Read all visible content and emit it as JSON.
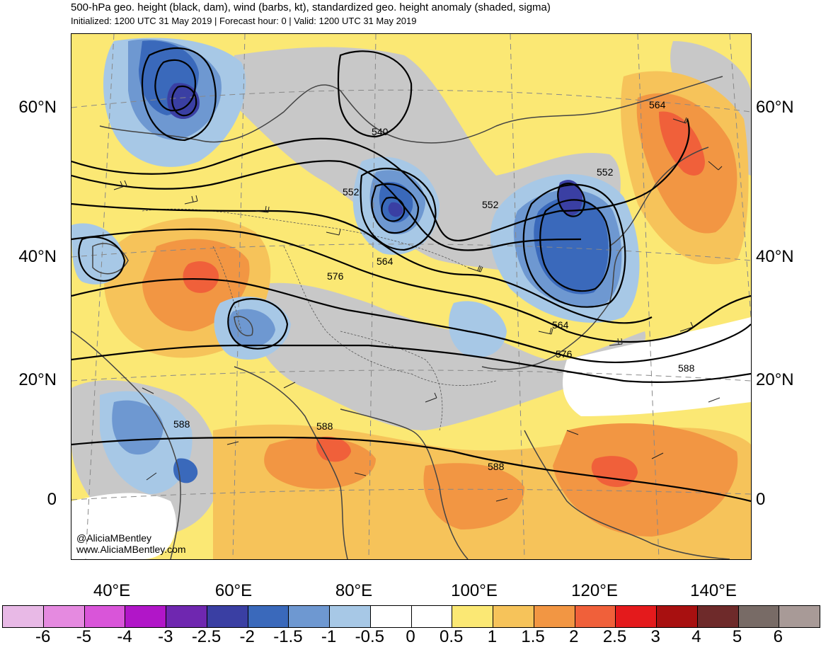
{
  "header": {
    "title": "500-hPa geo. height (black, dam), wind (barbs, kt), standardized geo. height anomaly (shaded, sigma)",
    "subtitle": "Initialized: 1200 UTC 31 May 2019 | Forecast hour: 0 | Valid: 1200 UTC 31 May 2019"
  },
  "map": {
    "lat_labels": [
      "60°N",
      "40°N",
      "20°N",
      "0"
    ],
    "lon_labels": [
      "40°E",
      "60°E",
      "80°E",
      "100°E",
      "120°E",
      "140°E"
    ],
    "contour_labels": [
      "564",
      "540",
      "552",
      "552",
      "552",
      "564",
      "576",
      "564",
      "576",
      "588",
      "588",
      "588",
      "588"
    ],
    "credit": [
      "@AliciaMBentley",
      "www.AliciaMBentley.com"
    ]
  },
  "colorbar": {
    "labels": [
      "-6",
      "-5",
      "-4",
      "-3",
      "-2.5",
      "-2",
      "-1.5",
      "-1",
      "-0.5",
      "0",
      "0.5",
      "1",
      "1.5",
      "2",
      "2.5",
      "3",
      "4",
      "5",
      "6"
    ],
    "colors": [
      "#e8b9e6",
      "#e58ae0",
      "#d955d9",
      "#b116c8",
      "#6f27b0",
      "#3a3fa3",
      "#3a69bb",
      "#6e98d1",
      "#a7c8e6",
      "#ffffff",
      "#ffffff",
      "#fbe874",
      "#f6c35a",
      "#f29643",
      "#f0603a",
      "#e41a1c",
      "#a81010",
      "#6e2a2a",
      "#786b66",
      "#a89a97"
    ]
  }
}
